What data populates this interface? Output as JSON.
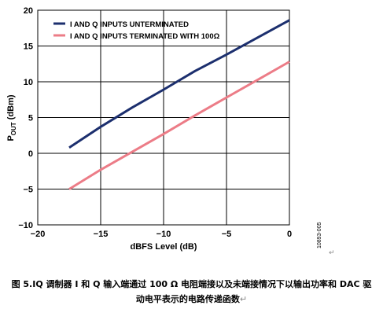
{
  "chart_data": {
    "type": "line",
    "xlabel": "dBFS Level (dB)",
    "ylabel": "P",
    "ylabel_sub": "OUT",
    "ylabel_unit": " (dBm)",
    "xlim": [
      -20,
      0
    ],
    "ylim": [
      -10,
      20
    ],
    "xticks": [
      -20,
      -15,
      -10,
      -5,
      0
    ],
    "yticks": [
      -10,
      -5,
      0,
      5,
      10,
      15,
      20
    ],
    "xtick_labels": [
      "−20",
      "−15",
      "−10",
      "−5",
      "0"
    ],
    "ytick_labels": [
      "−10",
      "−5",
      "0",
      "5",
      "10",
      "15",
      "20"
    ],
    "grid": true,
    "legend_position": "top-left",
    "series": [
      {
        "name": "I AND Q INPUTS UNTERMINATED",
        "color": "#1c2f6e",
        "x": [
          -17.5,
          -15,
          -12.5,
          -10,
          -7.5,
          -5,
          -2.5,
          0
        ],
        "y": [
          0.8,
          3.7,
          6.4,
          8.9,
          11.5,
          13.8,
          16.2,
          18.6
        ]
      },
      {
        "name": "I AND Q INPUTS TERMINATED WITH 100Ω",
        "color": "#ec7c87",
        "x": [
          -17.5,
          -15,
          -12.5,
          -10,
          -7.5,
          -5,
          -2.5,
          0
        ],
        "y": [
          -5.0,
          -2.3,
          0.2,
          2.7,
          5.3,
          7.8,
          10.3,
          12.8
        ]
      }
    ],
    "annotation": "10893-005"
  },
  "return_mark": "↵",
  "caption": {
    "line1": "图 5.IQ 调制器 I 和 Q 输入端通过 100 Ω 电阻端接以及未端接情况下以输出功率和 DAC 驱",
    "line2": "动电平表示的电路传递函数"
  }
}
